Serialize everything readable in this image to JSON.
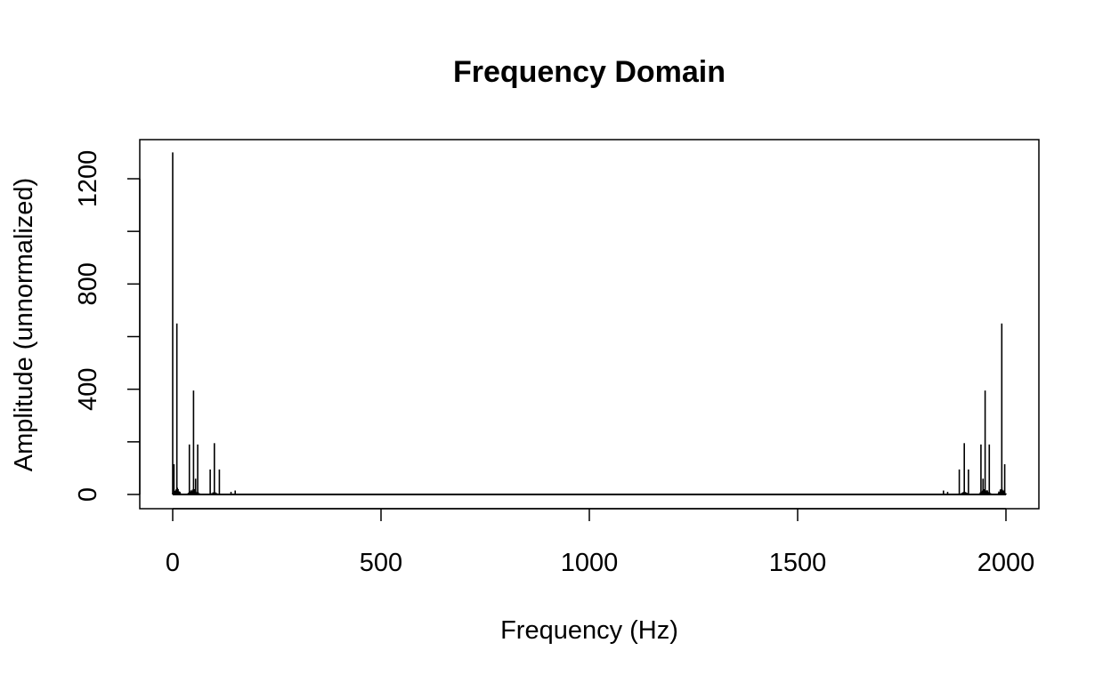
{
  "chart_data": {
    "type": "line",
    "title": "Frequency Domain",
    "xlabel": "Frequency (Hz)",
    "ylabel": "Amplitude (unnormalized)",
    "xlim": [
      0,
      2000
    ],
    "ylim": [
      0,
      1300
    ],
    "x_ticks": [
      0,
      500,
      1000,
      1500,
      2000
    ],
    "y_ticks": [
      0,
      400,
      800,
      1200
    ],
    "y_minor_ticks": [
      200,
      600,
      1000
    ],
    "grid": false,
    "legend": "none",
    "colors": {
      "line": "#000000",
      "axes": "#000000",
      "background": "#ffffff"
    },
    "peaks": [
      {
        "x": 0,
        "y": 1300
      },
      {
        "x": 3,
        "y": 115
      },
      {
        "x": 10,
        "y": 650
      },
      {
        "x": 40,
        "y": 190
      },
      {
        "x": 50,
        "y": 395
      },
      {
        "x": 55,
        "y": 60
      },
      {
        "x": 60,
        "y": 190
      },
      {
        "x": 90,
        "y": 95
      },
      {
        "x": 100,
        "y": 195
      },
      {
        "x": 112,
        "y": 95
      },
      {
        "x": 140,
        "y": 10
      },
      {
        "x": 150,
        "y": 15
      },
      {
        "x": 1850,
        "y": 15
      },
      {
        "x": 1860,
        "y": 10
      },
      {
        "x": 1888,
        "y": 95
      },
      {
        "x": 1900,
        "y": 195
      },
      {
        "x": 1910,
        "y": 95
      },
      {
        "x": 1940,
        "y": 190
      },
      {
        "x": 1945,
        "y": 60
      },
      {
        "x": 1950,
        "y": 395
      },
      {
        "x": 1960,
        "y": 190
      },
      {
        "x": 1990,
        "y": 650
      },
      {
        "x": 1997,
        "y": 115
      }
    ],
    "noise_clusters": [
      {
        "center": 10,
        "halfwidth": 12,
        "level": 30
      },
      {
        "center": 50,
        "halfwidth": 18,
        "level": 25
      },
      {
        "center": 100,
        "halfwidth": 14,
        "level": 12
      },
      {
        "center": 1900,
        "halfwidth": 14,
        "level": 12
      },
      {
        "center": 1950,
        "halfwidth": 18,
        "level": 25
      },
      {
        "center": 1990,
        "halfwidth": 12,
        "level": 30
      }
    ]
  }
}
